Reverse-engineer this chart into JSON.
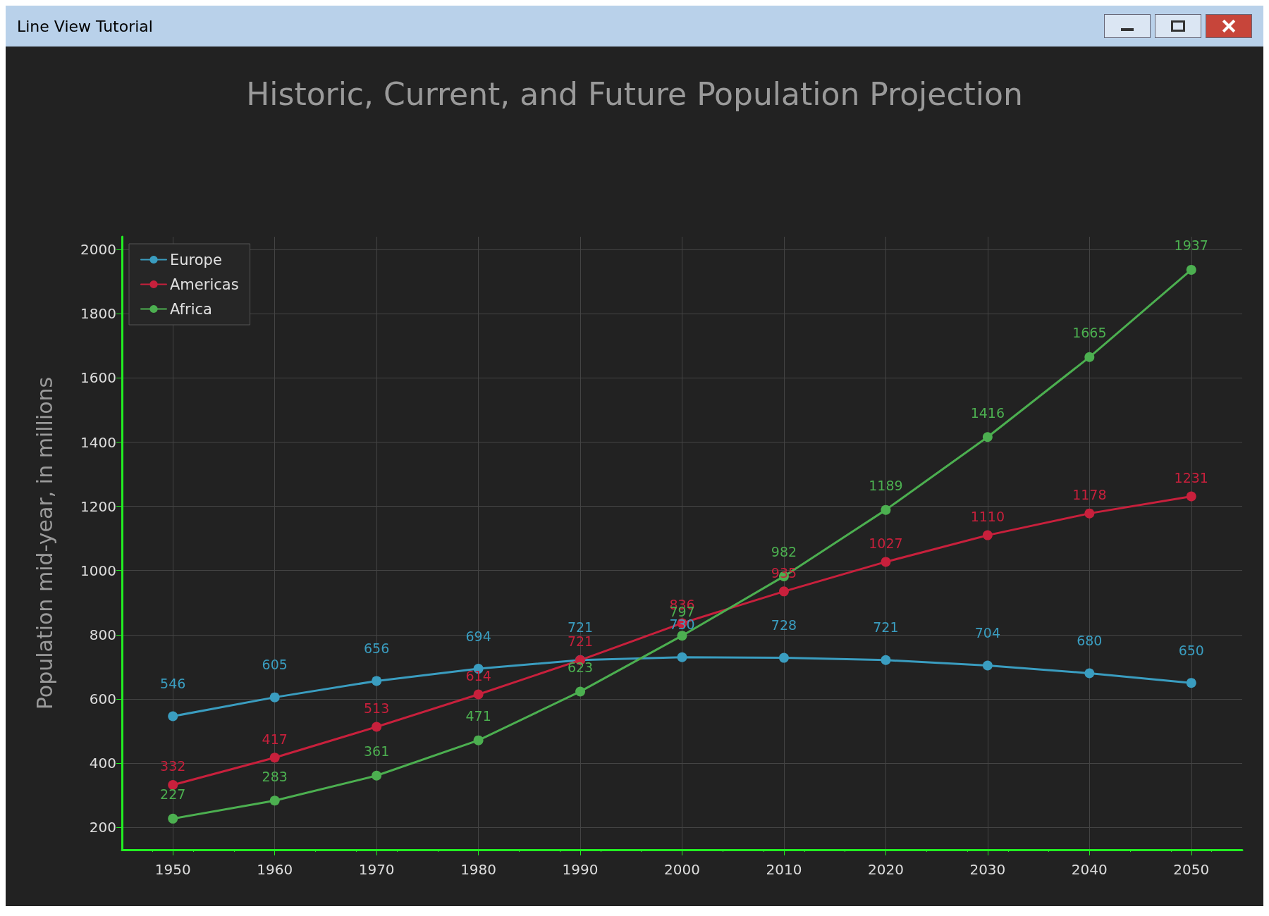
{
  "chart_data": {
    "type": "line",
    "title": "Historic, Current, and Future Population Projection",
    "ylabel": "Population mid-year, in millions",
    "annotations": [
      "Line View Tutorial"
    ],
    "x": [
      1950,
      1960,
      1970,
      1980,
      1990,
      2000,
      2010,
      2020,
      2030,
      2040,
      2050
    ],
    "series": [
      {
        "name": "Europe",
        "color": "#3a9dc0",
        "values": [
          546,
          605,
          656,
          694,
          721,
          730,
          728,
          721,
          704,
          680,
          650
        ]
      },
      {
        "name": "Americas",
        "color": "#c8203c",
        "values": [
          332,
          417,
          513,
          614,
          721,
          836,
          935,
          1027,
          1110,
          1178,
          1231
        ]
      },
      {
        "name": "Africa",
        "color": "#4caf50",
        "values": [
          227,
          283,
          361,
          471,
          623,
          797,
          982,
          1189,
          1416,
          1665,
          1937
        ]
      }
    ],
    "xlim": [
      1945,
      2055
    ],
    "xticks": [
      1950,
      1960,
      1970,
      1980,
      1990,
      2000,
      2010,
      2020,
      2030,
      2040,
      2050
    ],
    "ylim": [
      130,
      2040
    ],
    "yticks": [
      200,
      400,
      600,
      800,
      1000,
      1200,
      1400,
      1600,
      1800,
      2000
    ],
    "grid": true,
    "legend": "top left",
    "marker": "circle",
    "line_style": "solid",
    "data_labels": true
  }
}
